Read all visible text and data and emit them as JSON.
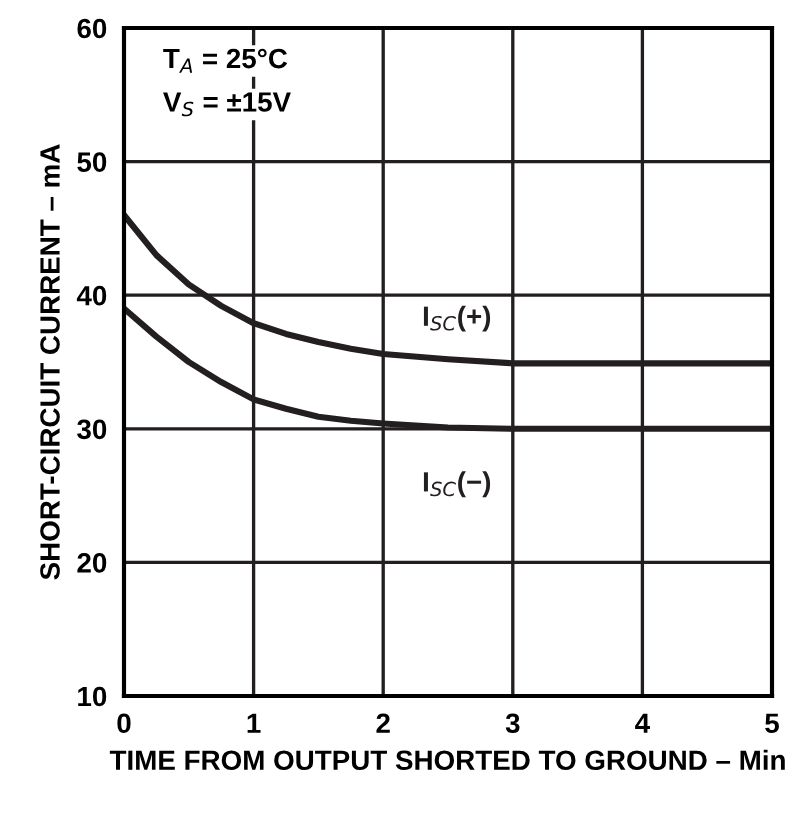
{
  "chart_data": {
    "type": "line",
    "xlabel": "TIME FROM OUTPUT SHORTED TO GROUND – Min",
    "ylabel": "SHORT-CIRCUIT CURRENT – mA",
    "x": [
      0,
      0.25,
      0.5,
      0.75,
      1,
      1.25,
      1.5,
      1.75,
      2,
      2.5,
      3,
      3.5,
      4,
      4.5,
      5
    ],
    "series": [
      {
        "name": "I$_{SC}$(+)",
        "color": "#231f20",
        "values": [
          46,
          43,
          40.8,
          39.2,
          37.9,
          37.1,
          36.5,
          36,
          35.6,
          35.2,
          34.9,
          34.9,
          34.9,
          34.9,
          34.9
        ]
      },
      {
        "name": "I$_{SC}$(−)",
        "color": "#231f20",
        "values": [
          39,
          36.9,
          35,
          33.5,
          32.2,
          31.5,
          30.9,
          30.6,
          30.4,
          30.1,
          30,
          30,
          30,
          30,
          30
        ]
      }
    ],
    "annotations": [
      "T$_{A}$ = 25°C",
      "V$_{S}$ = ±15V"
    ],
    "xlim": [
      0,
      5
    ],
    "xticks": [
      0,
      1,
      2,
      3,
      4,
      5
    ],
    "ylim": [
      10,
      60
    ],
    "yticks": [
      10,
      20,
      30,
      40,
      50,
      60
    ],
    "grid": true,
    "marker": "none",
    "line_style": "solid",
    "legend": false
  }
}
